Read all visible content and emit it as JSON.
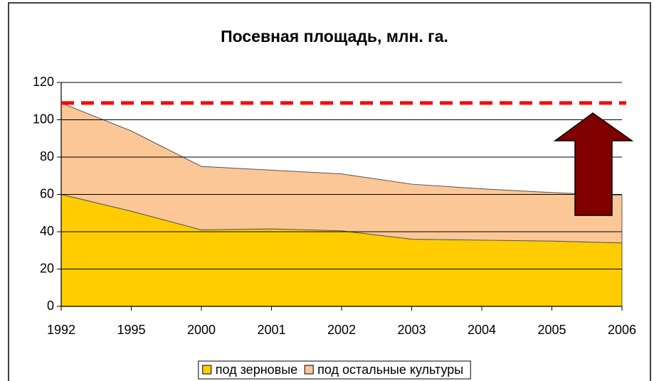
{
  "chart_data": {
    "type": "stacked_area",
    "title": "Посевная площадь, млн. га.",
    "categories": [
      "1992",
      "1995",
      "2000",
      "2001",
      "2002",
      "2003",
      "2004",
      "2005",
      "2006"
    ],
    "series": [
      {
        "name": "под зерновые",
        "color": "#ffcc00",
        "values": [
          60,
          51,
          41,
          41.5,
          40.5,
          36,
          35.5,
          35,
          34
        ]
      },
      {
        "name": "под остальные культуры",
        "color": "#fcc796",
        "values": [
          49,
          43,
          34,
          31.5,
          30.5,
          29.5,
          27.5,
          26,
          25.5
        ]
      }
    ],
    "ylim": [
      0,
      120
    ],
    "yticks": [
      0,
      20,
      40,
      60,
      80,
      100,
      120
    ],
    "grid": true,
    "reference_line": {
      "value": 109,
      "color": "#ff0000"
    },
    "legend": "bottom"
  }
}
